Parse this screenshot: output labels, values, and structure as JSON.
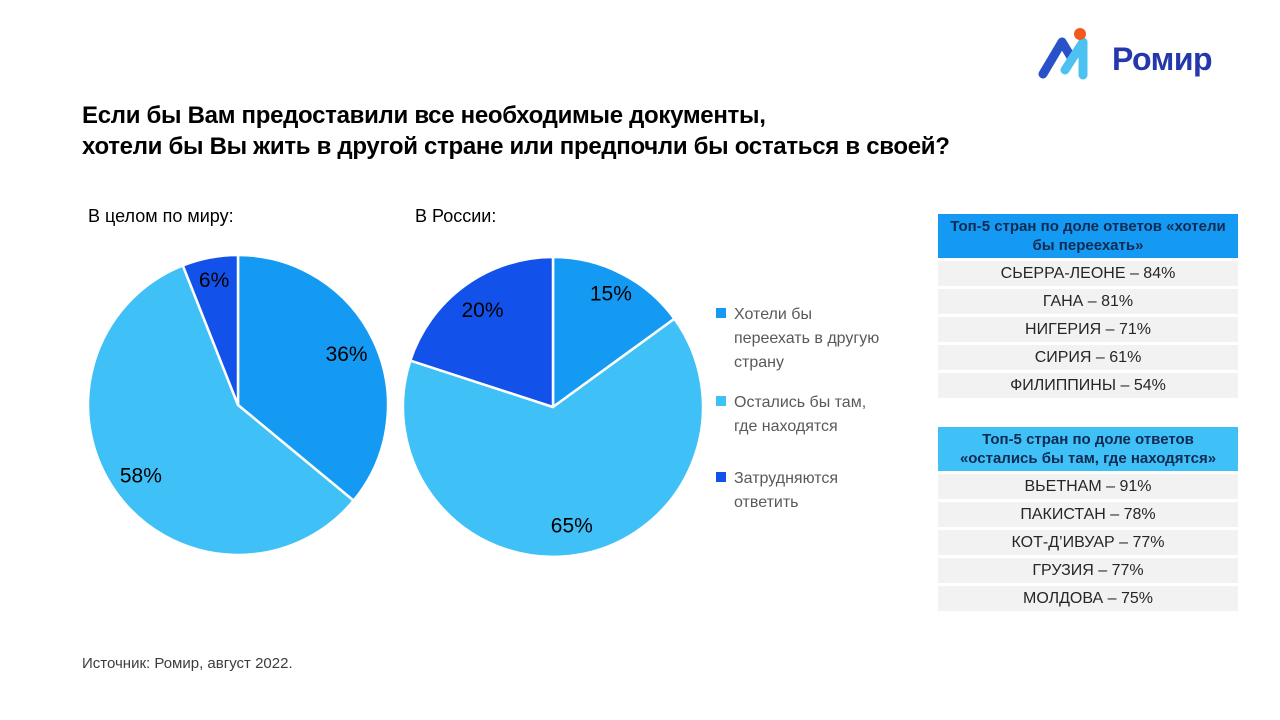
{
  "colors": {
    "move": "#149af2",
    "stay": "#3fc0f7",
    "undecided": "#1352ea",
    "logo_text": "#2438ab",
    "logo_dark_stroke": "#2a52c8",
    "logo_light_stroke": "#4cc2f3",
    "logo_dot": "#f05a1d",
    "table_header_text": "#112a52",
    "table_row_bg": "#f2f2f2",
    "legend_text": "#595959"
  },
  "logo": {
    "brand": "Ромир"
  },
  "title": {
    "line1": "Если бы Вам предоставили все необходимые документы,",
    "line2": "хотели бы Вы жить в другой стране или предпочли бы остаться в своей?"
  },
  "chart_data": [
    {
      "type": "pie",
      "title": "В целом по миру:",
      "labels": [
        "Хотели бы переехать в другую страну",
        "Остались бы там, где находятся",
        "Затрудняются ответить"
      ],
      "values": [
        36,
        58,
        6
      ],
      "unit": "%",
      "color_keys": [
        "move",
        "stay",
        "undecided"
      ],
      "start_angle_deg": 0,
      "direction": "clockwise",
      "data_labels": [
        "36%",
        "58%",
        "6%"
      ],
      "legend_position": "right"
    },
    {
      "type": "pie",
      "title": "В России:",
      "labels": [
        "Хотели бы переехать в другую страну",
        "Остались бы там, где находятся",
        "Затрудняются ответить"
      ],
      "values": [
        15,
        65,
        20
      ],
      "unit": "%",
      "color_keys": [
        "move",
        "stay",
        "undecided"
      ],
      "start_angle_deg": 0,
      "direction": "clockwise",
      "data_labels": [
        "15%",
        "65%",
        "20%"
      ],
      "legend_position": "right"
    }
  ],
  "legend": {
    "items": [
      {
        "label": "Хотели бы переехать в другую страну",
        "lines": [
          "Хотели бы",
          "переехать в другую",
          "страну"
        ],
        "color_key": "move"
      },
      {
        "label": "Остались бы там, где находятся",
        "lines": [
          "Остались бы там,",
          "где находятся"
        ],
        "color_key": "stay"
      },
      {
        "label": "Затрудняются ответить",
        "lines": [
          "Затрудняются",
          "ответить"
        ],
        "color_key": "undecided"
      }
    ]
  },
  "tables": [
    {
      "header": "Топ-5 стран по доле ответов «хотели бы переехать»",
      "header_lines": [
        "Топ-5 стран по доле ответов «хотели",
        "бы переехать»"
      ],
      "header_color_key": "move",
      "rows": [
        "СЬЕРРА-ЛЕОНЕ – 84%",
        "ГАНА – 81%",
        "НИГЕРИЯ – 71%",
        "СИРИЯ – 61%",
        "ФИЛИППИНЫ – 54%"
      ]
    },
    {
      "header": "Топ-5 стран по доле ответов «остались бы там, где находятся»",
      "header_lines": [
        "Топ-5 стран по доле ответов",
        "«остались бы там, где находятся»"
      ],
      "header_color_key": "stay",
      "rows": [
        "ВЬЕТНАМ – 91%",
        "ПАКИСТАН – 78%",
        "КОТ-Д’ИВУАР – 77%",
        "ГРУЗИЯ – 77%",
        "МОЛДОВА – 75%"
      ]
    }
  ],
  "source": "Источник: Ромир, август 2022."
}
